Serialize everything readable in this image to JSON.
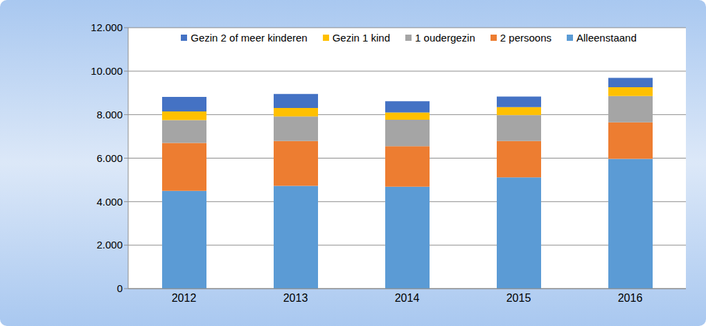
{
  "chart_data": {
    "type": "bar",
    "stacked": true,
    "grid": true,
    "legend": "top",
    "categories": [
      "2012",
      "2013",
      "2014",
      "2015",
      "2016"
    ],
    "series": [
      {
        "name": "Alleenstaand",
        "color": "#5B9BD5",
        "values": [
          4500,
          4730,
          4690,
          5120,
          5970
        ]
      },
      {
        "name": "2 persoons",
        "color": "#ED7D31",
        "values": [
          2200,
          2060,
          1860,
          1670,
          1675
        ]
      },
      {
        "name": "1 oudergezin",
        "color": "#A5A5A5",
        "values": [
          1050,
          1130,
          1220,
          1190,
          1215
        ]
      },
      {
        "name": "Gezin 1 kind",
        "color": "#FFC000",
        "values": [
          400,
          390,
          330,
          365,
          400
        ]
      },
      {
        "name": "Gezin 2 of meer kinderen",
        "color": "#4472C4",
        "values": [
          670,
          640,
          520,
          485,
          430
        ]
      }
    ],
    "ylim": [
      0,
      12000
    ],
    "yticks": [
      0,
      {
        "value": 2000,
        "label": "2.000"
      },
      {
        "value": 4000,
        "label": "4.000"
      },
      {
        "value": 6000,
        "label": "6.000"
      },
      {
        "value": 8000,
        "label": "8.000"
      },
      {
        "value": 10000,
        "label": "10.000"
      },
      {
        "value": 12000,
        "label": "12.000"
      }
    ]
  }
}
